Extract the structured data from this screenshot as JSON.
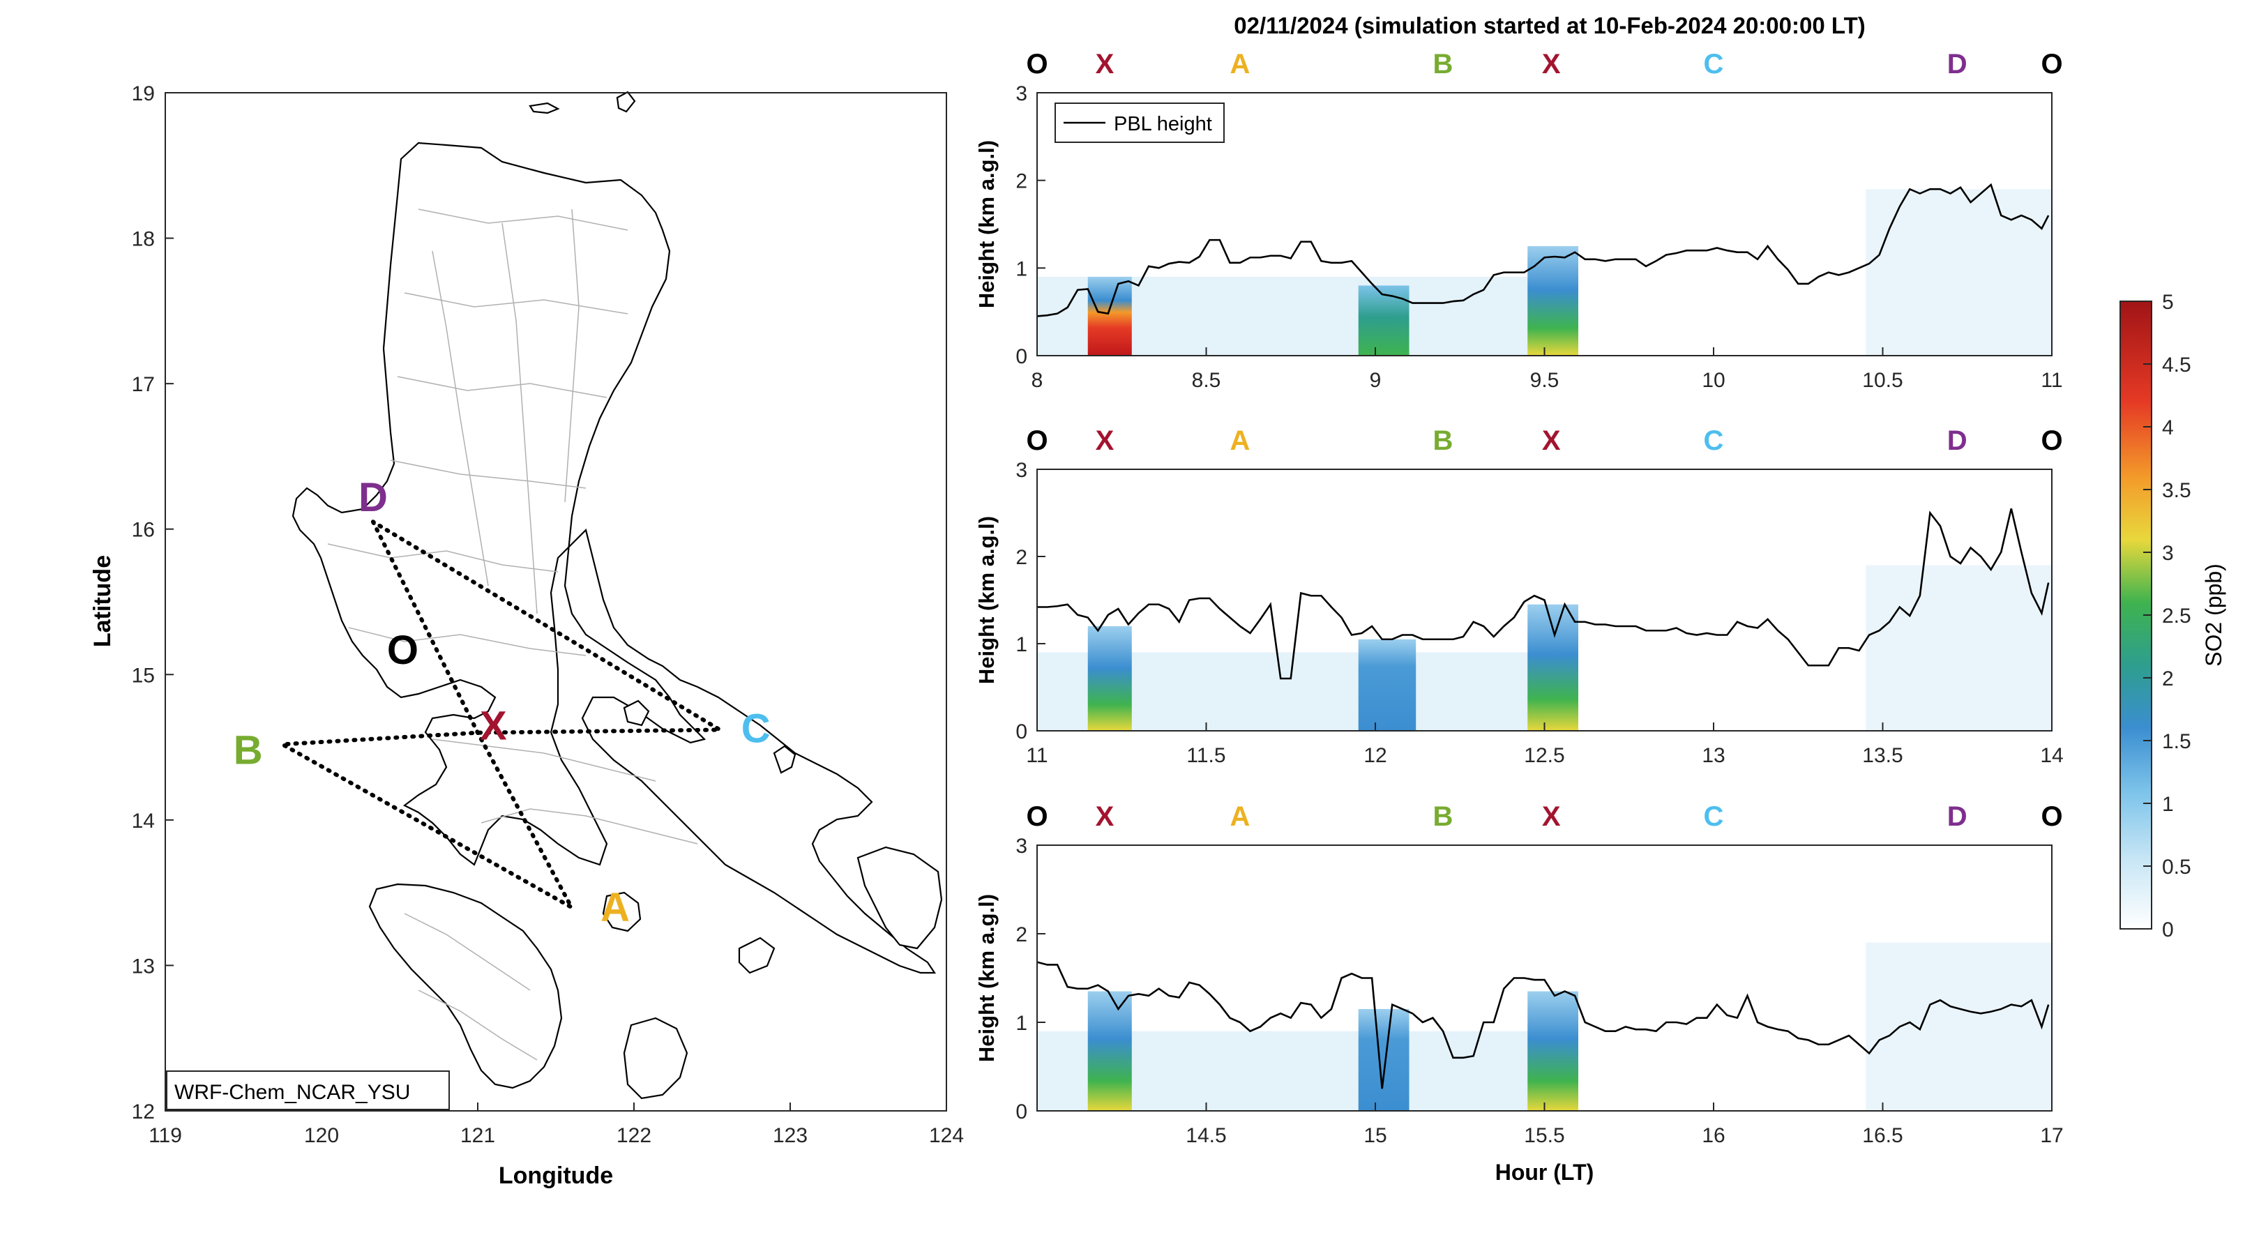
{
  "figure_title": "02/11/2024 (simulation started at 10-Feb-2024 20:00:00 LT)",
  "colors": {
    "O": "#000000",
    "X": "#a2142f",
    "A": "#edb120",
    "B": "#77ac30",
    "C": "#4dbeee",
    "D": "#7e2f8e"
  },
  "chart_data": [
    {
      "type": "map",
      "xlabel": "Longitude",
      "ylabel": "Latitude",
      "xlim": [
        119,
        124
      ],
      "ylim": [
        12,
        19
      ],
      "xticks": [
        "119",
        "120",
        "121",
        "122",
        "123",
        "124"
      ],
      "yticks": [
        "12",
        "13",
        "14",
        "15",
        "16",
        "17",
        "18",
        "19"
      ],
      "annotation": "WRF-Chem_NCAR_YSU",
      "points": [
        {
          "label": "D",
          "lon": 120.33,
          "lat": 16.22
        },
        {
          "label": "O",
          "lon": 120.52,
          "lat": 15.17
        },
        {
          "label": "X",
          "lon": 121.1,
          "lat": 14.65
        },
        {
          "label": "C",
          "lon": 122.78,
          "lat": 14.63
        },
        {
          "label": "B",
          "lon": 119.53,
          "lat": 14.48
        },
        {
          "label": "A",
          "lon": 121.88,
          "lat": 13.4
        }
      ],
      "route": [
        [
          120.33,
          16.05
        ],
        [
          121.0,
          14.6
        ],
        [
          121.6,
          13.4
        ],
        [
          119.75,
          14.52
        ],
        [
          121.0,
          14.6
        ],
        [
          122.55,
          14.62
        ],
        [
          120.33,
          16.05
        ]
      ]
    },
    {
      "type": "heatmap",
      "ylabel": "Height (km a.g.l)",
      "xlim": [
        8,
        11
      ],
      "ylim": [
        0,
        3
      ],
      "xticks": [
        "8",
        "8.5",
        "9",
        "9.5",
        "10",
        "10.5",
        "11"
      ],
      "yticks": [
        "0",
        "1",
        "2",
        "3"
      ],
      "legend": "PBL height",
      "legend_position": "top-left",
      "top_labels": [
        {
          "label": "O",
          "x": 8.0
        },
        {
          "label": "X",
          "x": 8.2
        },
        {
          "label": "A",
          "x": 8.6
        },
        {
          "label": "B",
          "x": 9.2
        },
        {
          "label": "X",
          "x": 9.52
        },
        {
          "label": "C",
          "x": 10.0
        },
        {
          "label": "D",
          "x": 10.72
        },
        {
          "label": "O",
          "x": 11.0
        }
      ],
      "pbl_x": [
        8.0,
        8.03,
        8.06,
        8.09,
        8.12,
        8.15,
        8.18,
        8.21,
        8.24,
        8.27,
        8.3,
        8.33,
        8.36,
        8.39,
        8.42,
        8.45,
        8.48,
        8.51,
        8.54,
        8.57,
        8.6,
        8.63,
        8.66,
        8.69,
        8.72,
        8.75,
        8.78,
        8.81,
        8.84,
        8.87,
        8.9,
        8.93,
        8.96,
        8.99,
        9.02,
        9.05,
        9.08,
        9.11,
        9.14,
        9.17,
        9.2,
        9.23,
        9.26,
        9.29,
        9.32,
        9.35,
        9.38,
        9.41,
        9.44,
        9.47,
        9.5,
        9.53,
        9.56,
        9.59,
        9.62,
        9.65,
        9.68,
        9.71,
        9.74,
        9.77,
        9.8,
        9.83,
        9.86,
        9.89,
        9.92,
        9.95,
        9.98,
        10.01,
        10.04,
        10.07,
        10.1,
        10.13,
        10.16,
        10.19,
        10.22,
        10.25,
        10.28,
        10.31,
        10.34,
        10.37,
        10.4,
        10.43,
        10.46,
        10.49,
        10.52,
        10.55,
        10.58,
        10.61,
        10.64,
        10.67,
        10.7,
        10.73,
        10.76,
        10.79,
        10.82,
        10.85,
        10.88,
        10.91,
        10.94,
        10.97,
        10.99
      ],
      "pbl_y": [
        0.45,
        0.46,
        0.48,
        0.55,
        0.75,
        0.76,
        0.5,
        0.48,
        0.82,
        0.85,
        0.8,
        1.02,
        1.0,
        1.05,
        1.07,
        1.06,
        1.13,
        1.32,
        1.32,
        1.06,
        1.06,
        1.12,
        1.12,
        1.14,
        1.14,
        1.11,
        1.3,
        1.3,
        1.08,
        1.06,
        1.06,
        1.08,
        0.95,
        0.82,
        0.7,
        0.68,
        0.65,
        0.6,
        0.6,
        0.6,
        0.6,
        0.62,
        0.63,
        0.7,
        0.75,
        0.92,
        0.95,
        0.95,
        0.95,
        1.02,
        1.12,
        1.13,
        1.12,
        1.18,
        1.1,
        1.1,
        1.08,
        1.1,
        1.1,
        1.1,
        1.02,
        1.08,
        1.15,
        1.17,
        1.2,
        1.2,
        1.2,
        1.23,
        1.2,
        1.18,
        1.18,
        1.1,
        1.25,
        1.1,
        0.98,
        0.82,
        0.82,
        0.9,
        0.95,
        0.92,
        0.95,
        1.0,
        1.05,
        1.15,
        1.45,
        1.7,
        1.9,
        1.85,
        1.9,
        1.9,
        1.85,
        1.92,
        1.75,
        1.85,
        1.95,
        1.6,
        1.55,
        1.6,
        1.55,
        1.45,
        1.6
      ],
      "so2_hotspots": [
        {
          "x0": 8.15,
          "x1": 8.28,
          "top_km": 0.9,
          "peak_ppb": 4.9
        },
        {
          "x0": 8.95,
          "x1": 9.1,
          "top_km": 0.8,
          "peak_ppb": 1.9
        },
        {
          "x0": 9.45,
          "x1": 9.6,
          "top_km": 1.25,
          "peak_ppb": 2.8
        }
      ]
    },
    {
      "type": "heatmap",
      "ylabel": "Height (km a.g.l)",
      "xlim": [
        11,
        14
      ],
      "ylim": [
        0,
        3
      ],
      "xticks": [
        "11",
        "11.5",
        "12",
        "12.5",
        "13",
        "13.5",
        "14"
      ],
      "yticks": [
        "0",
        "1",
        "2",
        "3"
      ],
      "top_labels": [
        {
          "label": "O",
          "x": 11.0
        },
        {
          "label": "X",
          "x": 11.2
        },
        {
          "label": "A",
          "x": 11.6
        },
        {
          "label": "B",
          "x": 12.2
        },
        {
          "label": "X",
          "x": 12.52
        },
        {
          "label": "C",
          "x": 13.0
        },
        {
          "label": "D",
          "x": 13.72
        },
        {
          "label": "O",
          "x": 14.0
        }
      ],
      "pbl_x": [
        11.0,
        11.03,
        11.06,
        11.09,
        11.12,
        11.15,
        11.18,
        11.21,
        11.24,
        11.27,
        11.3,
        11.33,
        11.36,
        11.39,
        11.42,
        11.45,
        11.48,
        11.51,
        11.54,
        11.57,
        11.6,
        11.63,
        11.66,
        11.69,
        11.72,
        11.75,
        11.78,
        11.81,
        11.84,
        11.87,
        11.9,
        11.93,
        11.96,
        11.99,
        12.02,
        12.05,
        12.08,
        12.11,
        12.14,
        12.17,
        12.2,
        12.23,
        12.26,
        12.29,
        12.32,
        12.35,
        12.38,
        12.41,
        12.44,
        12.47,
        12.5,
        12.53,
        12.56,
        12.59,
        12.62,
        12.65,
        12.68,
        12.71,
        12.74,
        12.77,
        12.8,
        12.83,
        12.86,
        12.89,
        12.92,
        12.95,
        12.98,
        13.01,
        13.04,
        13.07,
        13.1,
        13.13,
        13.16,
        13.19,
        13.22,
        13.25,
        13.28,
        13.31,
        13.34,
        13.37,
        13.4,
        13.43,
        13.46,
        13.49,
        13.52,
        13.55,
        13.58,
        13.61,
        13.64,
        13.67,
        13.7,
        13.73,
        13.76,
        13.79,
        13.82,
        13.85,
        13.88,
        13.91,
        13.94,
        13.97,
        13.99
      ],
      "pbl_y": [
        1.42,
        1.42,
        1.43,
        1.45,
        1.33,
        1.3,
        1.15,
        1.33,
        1.4,
        1.22,
        1.35,
        1.45,
        1.45,
        1.4,
        1.25,
        1.5,
        1.52,
        1.52,
        1.4,
        1.3,
        1.2,
        1.12,
        1.28,
        1.45,
        0.6,
        0.6,
        1.58,
        1.55,
        1.55,
        1.42,
        1.3,
        1.1,
        1.12,
        1.2,
        1.05,
        1.05,
        1.1,
        1.1,
        1.05,
        1.05,
        1.05,
        1.05,
        1.08,
        1.25,
        1.2,
        1.08,
        1.2,
        1.3,
        1.48,
        1.55,
        1.5,
        1.1,
        1.45,
        1.25,
        1.25,
        1.22,
        1.22,
        1.2,
        1.2,
        1.2,
        1.15,
        1.15,
        1.15,
        1.18,
        1.12,
        1.1,
        1.12,
        1.1,
        1.1,
        1.25,
        1.2,
        1.18,
        1.28,
        1.15,
        1.05,
        0.9,
        0.75,
        0.75,
        0.75,
        0.95,
        0.95,
        0.92,
        1.1,
        1.15,
        1.25,
        1.42,
        1.32,
        1.55,
        2.5,
        2.35,
        2.0,
        1.92,
        2.1,
        2.0,
        1.85,
        2.05,
        2.55,
        2.05,
        1.58,
        1.35,
        1.7
      ],
      "so2_hotspots": [
        {
          "x0": 11.15,
          "x1": 11.28,
          "top_km": 1.2,
          "peak_ppb": 2.3
        },
        {
          "x0": 11.95,
          "x1": 12.12,
          "top_km": 1.05,
          "peak_ppb": 1.5
        },
        {
          "x0": 12.45,
          "x1": 12.6,
          "top_km": 1.45,
          "peak_ppb": 2.5
        }
      ]
    },
    {
      "type": "heatmap",
      "ylabel": "Height (km a.g.l)",
      "xlabel": "Hour (LT)",
      "xlim": [
        14,
        17
      ],
      "ylim": [
        0,
        3
      ],
      "xticks": [
        "14.5",
        "15",
        "15.5",
        "16",
        "16.5",
        "17"
      ],
      "yticks": [
        "0",
        "1",
        "2",
        "3"
      ],
      "top_labels": [
        {
          "label": "O",
          "x": 14.0
        },
        {
          "label": "X",
          "x": 14.2
        },
        {
          "label": "A",
          "x": 14.6
        },
        {
          "label": "B",
          "x": 15.2
        },
        {
          "label": "X",
          "x": 15.52
        },
        {
          "label": "C",
          "x": 16.0
        },
        {
          "label": "D",
          "x": 16.72
        },
        {
          "label": "O",
          "x": 17.0
        }
      ],
      "pbl_x": [
        14.0,
        14.03,
        14.06,
        14.09,
        14.12,
        14.15,
        14.18,
        14.21,
        14.24,
        14.27,
        14.3,
        14.33,
        14.36,
        14.39,
        14.42,
        14.45,
        14.48,
        14.51,
        14.54,
        14.57,
        14.6,
        14.63,
        14.66,
        14.69,
        14.72,
        14.75,
        14.78,
        14.81,
        14.84,
        14.87,
        14.9,
        14.93,
        14.96,
        14.99,
        15.02,
        15.05,
        15.08,
        15.11,
        15.14,
        15.17,
        15.2,
        15.23,
        15.26,
        15.29,
        15.32,
        15.35,
        15.38,
        15.41,
        15.44,
        15.47,
        15.5,
        15.53,
        15.56,
        15.59,
        15.62,
        15.65,
        15.68,
        15.71,
        15.74,
        15.77,
        15.8,
        15.83,
        15.86,
        15.89,
        15.92,
        15.95,
        15.98,
        16.01,
        16.04,
        16.07,
        16.1,
        16.13,
        16.16,
        16.19,
        16.22,
        16.25,
        16.28,
        16.31,
        16.34,
        16.37,
        16.4,
        16.43,
        16.46,
        16.49,
        16.52,
        16.55,
        16.58,
        16.61,
        16.64,
        16.67,
        16.7,
        16.73,
        16.76,
        16.79,
        16.82,
        16.85,
        16.88,
        16.91,
        16.94,
        16.97,
        16.99
      ],
      "pbl_y": [
        1.68,
        1.65,
        1.65,
        1.4,
        1.38,
        1.38,
        1.42,
        1.35,
        1.15,
        1.3,
        1.32,
        1.3,
        1.38,
        1.3,
        1.28,
        1.45,
        1.42,
        1.32,
        1.2,
        1.05,
        1.0,
        0.9,
        0.95,
        1.05,
        1.1,
        1.05,
        1.22,
        1.2,
        1.05,
        1.15,
        1.5,
        1.55,
        1.5,
        1.5,
        0.25,
        1.2,
        1.15,
        1.1,
        1.0,
        1.05,
        0.9,
        0.6,
        0.6,
        0.62,
        1.0,
        1.0,
        1.38,
        1.5,
        1.5,
        1.48,
        1.48,
        1.3,
        1.35,
        1.3,
        1.0,
        0.95,
        0.9,
        0.9,
        0.95,
        0.92,
        0.92,
        0.9,
        1.0,
        1.0,
        0.98,
        1.05,
        1.05,
        1.2,
        1.08,
        1.05,
        1.3,
        1.0,
        0.95,
        0.92,
        0.9,
        0.82,
        0.8,
        0.75,
        0.75,
        0.8,
        0.85,
        0.75,
        0.65,
        0.8,
        0.85,
        0.95,
        1.0,
        0.92,
        1.2,
        1.25,
        1.18,
        1.15,
        1.12,
        1.1,
        1.12,
        1.15,
        1.2,
        1.18,
        1.25,
        0.95,
        1.2
      ],
      "so2_hotspots": [
        {
          "x0": 14.15,
          "x1": 14.28,
          "top_km": 1.35,
          "peak_ppb": 2.4
        },
        {
          "x0": 14.95,
          "x1": 15.1,
          "top_km": 1.15,
          "peak_ppb": 1.5
        },
        {
          "x0": 15.45,
          "x1": 15.6,
          "top_km": 1.35,
          "peak_ppb": 2.5
        }
      ]
    },
    {
      "type": "colorbar",
      "label": "SO2 (ppb)",
      "range": [
        0,
        5
      ],
      "ticks": [
        "0",
        "0.5",
        "1",
        "1.5",
        "2",
        "2.5",
        "3",
        "3.5",
        "4",
        "4.5",
        "5"
      ],
      "colormap": [
        "#ffffff",
        "#c8e6f5",
        "#7cc3ea",
        "#3b8ed0",
        "#2e9e8e",
        "#3fb34f",
        "#e8d83c",
        "#f39a2a",
        "#e53a25",
        "#a11416"
      ]
    }
  ]
}
